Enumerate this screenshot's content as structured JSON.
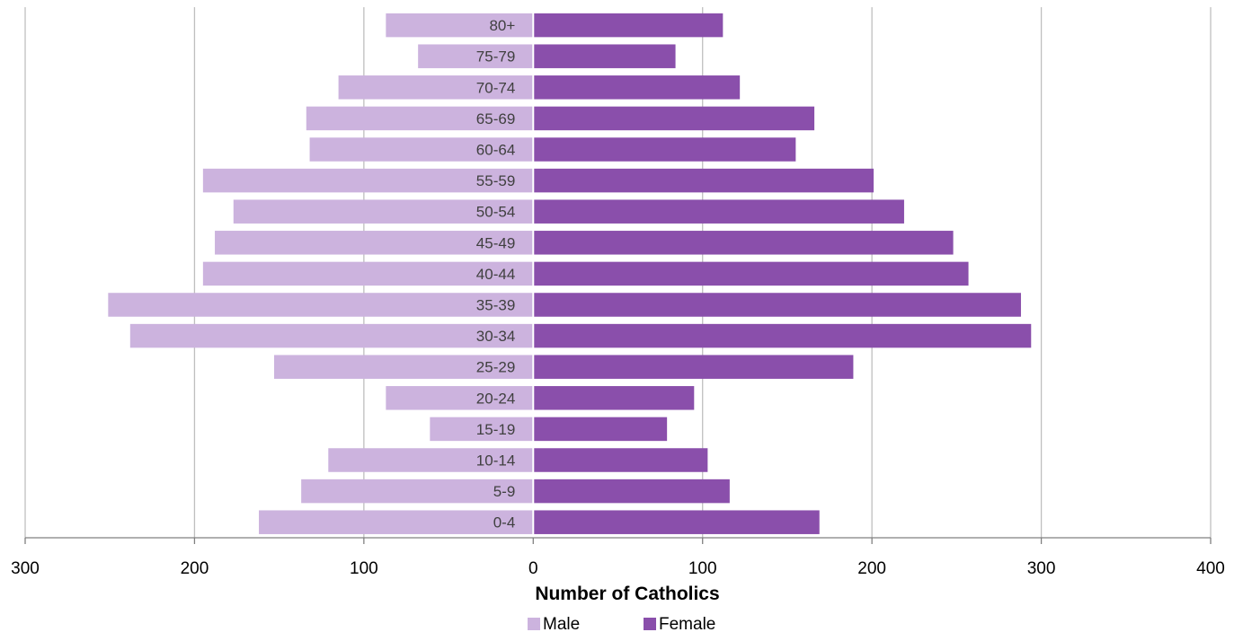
{
  "chart_data": {
    "type": "bar",
    "orientation": "horizontal",
    "layout": "population-pyramid",
    "categories": [
      "0-4",
      "5-9",
      "10-14",
      "15-19",
      "20-24",
      "25-29",
      "30-34",
      "35-39",
      "40-44",
      "45-49",
      "50-54",
      "55-59",
      "60-64",
      "65-69",
      "70-74",
      "75-79",
      "80+"
    ],
    "series": [
      {
        "name": "Male",
        "side": "left",
        "color": "#CCB3DE",
        "values": [
          162,
          137,
          121,
          61,
          87,
          153,
          238,
          251,
          195,
          188,
          177,
          195,
          132,
          134,
          115,
          68,
          87
        ]
      },
      {
        "name": "Female",
        "side": "right",
        "color": "#8A4FAB",
        "values": [
          169,
          116,
          103,
          79,
          95,
          189,
          294,
          288,
          257,
          248,
          219,
          201,
          155,
          166,
          122,
          84,
          112
        ]
      }
    ],
    "xlabel": "Number of Catholics",
    "xlim": [
      -300,
      400
    ],
    "xticks": [
      -300,
      -200,
      -100,
      0,
      100,
      200,
      300,
      400
    ],
    "xtick_labels": [
      "300",
      "200",
      "100",
      "0",
      "100",
      "200",
      "300",
      "400"
    ],
    "grid": "vertical",
    "legend": "bottom-center",
    "colors": {
      "gridline": "#BFBFBF",
      "axis": "#808080"
    }
  }
}
